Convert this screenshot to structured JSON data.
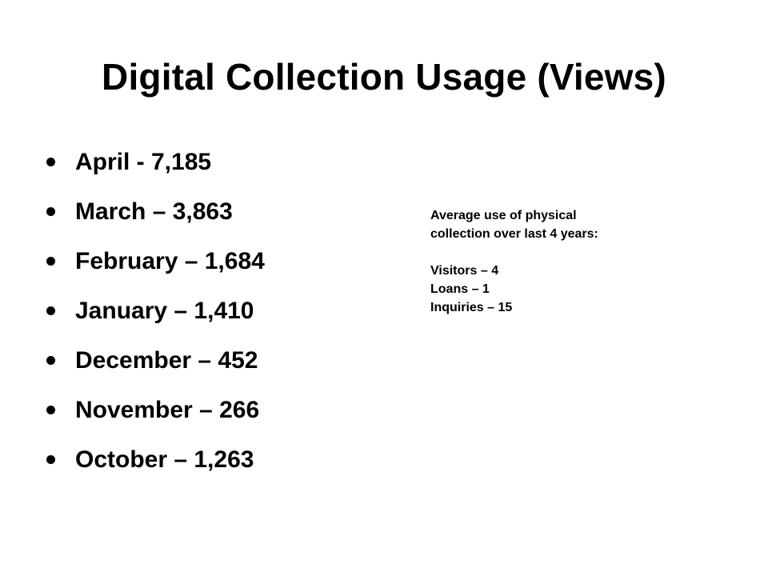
{
  "slide": {
    "title": "Digital Collection Usage (Views)",
    "bullets": [
      "April - 7,185",
      "March – 3,863",
      "February – 1,684",
      "January – 1,410",
      "December – 452",
      "November – 266",
      "October – 1,263"
    ],
    "side_note": {
      "heading_line1": "Average use of physical",
      "heading_line2": "collection over last 4 years:",
      "stats": [
        "Visitors – 4",
        "Loans – 1",
        "Inquiries – 15"
      ]
    }
  }
}
